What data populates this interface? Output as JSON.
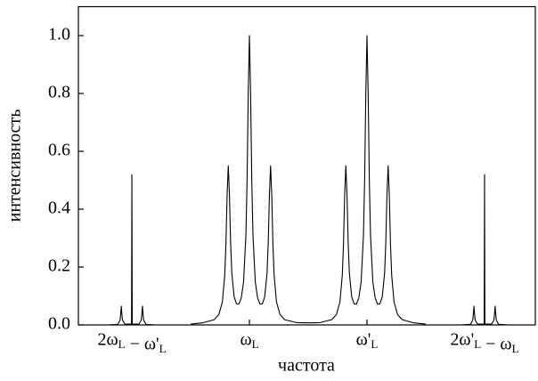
{
  "chart_data": {
    "type": "line",
    "x_label": "частота",
    "y_label": "интенсивность",
    "x": [
      -0.2,
      -0.12,
      -0.1,
      -0.095,
      -0.09,
      -0.085,
      -0.08,
      -0.06,
      -0.003,
      0,
      0.003,
      0.06,
      0.08,
      0.085,
      0.09,
      0.095,
      0.1,
      0.12,
      0.2,
      0.35,
      0.5,
      0.6,
      0.7,
      0.74,
      0.77,
      0.79,
      0.8,
      0.81,
      0.82,
      0.83,
      0.84,
      0.85,
      0.87,
      0.89,
      0.91,
      0.93,
      0.95,
      0.97,
      0.98,
      0.99,
      1,
      1.01,
      1.02,
      1.03,
      1.05,
      1.07,
      1.09,
      1.11,
      1.13,
      1.15,
      1.16,
      1.17,
      1.18,
      1.19,
      1.2,
      1.21,
      1.23,
      1.26,
      1.3,
      1.4,
      1.5,
      1.6,
      1.7,
      1.74,
      1.77,
      1.79,
      1.8,
      1.81,
      1.82,
      1.83,
      1.84,
      1.85,
      1.87,
      1.89,
      1.91,
      1.93,
      1.95,
      1.97,
      1.98,
      1.99,
      2,
      2.01,
      2.02,
      2.03,
      2.05,
      2.07,
      2.09,
      2.11,
      2.13,
      2.15,
      2.16,
      2.17,
      2.18,
      2.19,
      2.2,
      2.21,
      2.23,
      2.26,
      2.3,
      2.4,
      2.5,
      2.65,
      2.8,
      2.88,
      2.9,
      2.905,
      2.91,
      2.915,
      2.92,
      2.94,
      2.997,
      3,
      3.003,
      3.06,
      3.08,
      3.085,
      3.09,
      3.095,
      3.1,
      3.12,
      3.2
    ],
    "series": [
      {
        "color": "#000000",
        "values": [
          0,
          0.002,
          0.017,
          0.038,
          0.065,
          0.038,
          0.017,
          0.003,
          0.003,
          0.52,
          0.003,
          0.003,
          0.017,
          0.038,
          0.065,
          0.038,
          0.017,
          0.002,
          0,
          null,
          0.003,
          0.007,
          0.018,
          0.036,
          0.08,
          0.172,
          0.278,
          0.447,
          0.55,
          0.45,
          0.284,
          0.18,
          0.097,
          0.073,
          0.072,
          0.092,
          0.148,
          0.31,
          0.5,
          0.8,
          1.0,
          0.8,
          0.5,
          0.31,
          0.148,
          0.092,
          0.072,
          0.073,
          0.097,
          0.18,
          0.284,
          0.45,
          0.55,
          0.447,
          0.278,
          0.172,
          0.08,
          0.036,
          0.018,
          0.008,
          0.007,
          0.008,
          0.018,
          0.036,
          0.08,
          0.172,
          0.278,
          0.447,
          0.55,
          0.45,
          0.284,
          0.18,
          0.097,
          0.073,
          0.072,
          0.092,
          0.148,
          0.31,
          0.5,
          0.8,
          1.0,
          0.8,
          0.5,
          0.31,
          0.148,
          0.092,
          0.072,
          0.073,
          0.097,
          0.18,
          0.284,
          0.45,
          0.55,
          0.447,
          0.278,
          0.172,
          0.08,
          0.036,
          0.018,
          0.007,
          0.003,
          null,
          0,
          0.002,
          0.017,
          0.038,
          0.065,
          0.038,
          0.017,
          0.003,
          0.003,
          0.52,
          0.003,
          0.003,
          0.017,
          0.038,
          0.065,
          0.038,
          0.017,
          0.002,
          0
        ]
      }
    ],
    "xlim": [
      -0.455,
      3.432
    ],
    "xticks": [
      {
        "value": 0,
        "label": "2ωL − ω'L"
      },
      {
        "value": 1,
        "label": "ωL"
      },
      {
        "value": 2,
        "label": "ω'L"
      },
      {
        "value": 3,
        "label": "2ω'L − ωL"
      }
    ],
    "ylim": [
      0,
      1.1
    ],
    "yticks": [
      {
        "value": 0,
        "label": "0.0"
      },
      0.2,
      0.4,
      0.6,
      0.8,
      {
        "value": 1,
        "label": "1.0"
      }
    ]
  }
}
